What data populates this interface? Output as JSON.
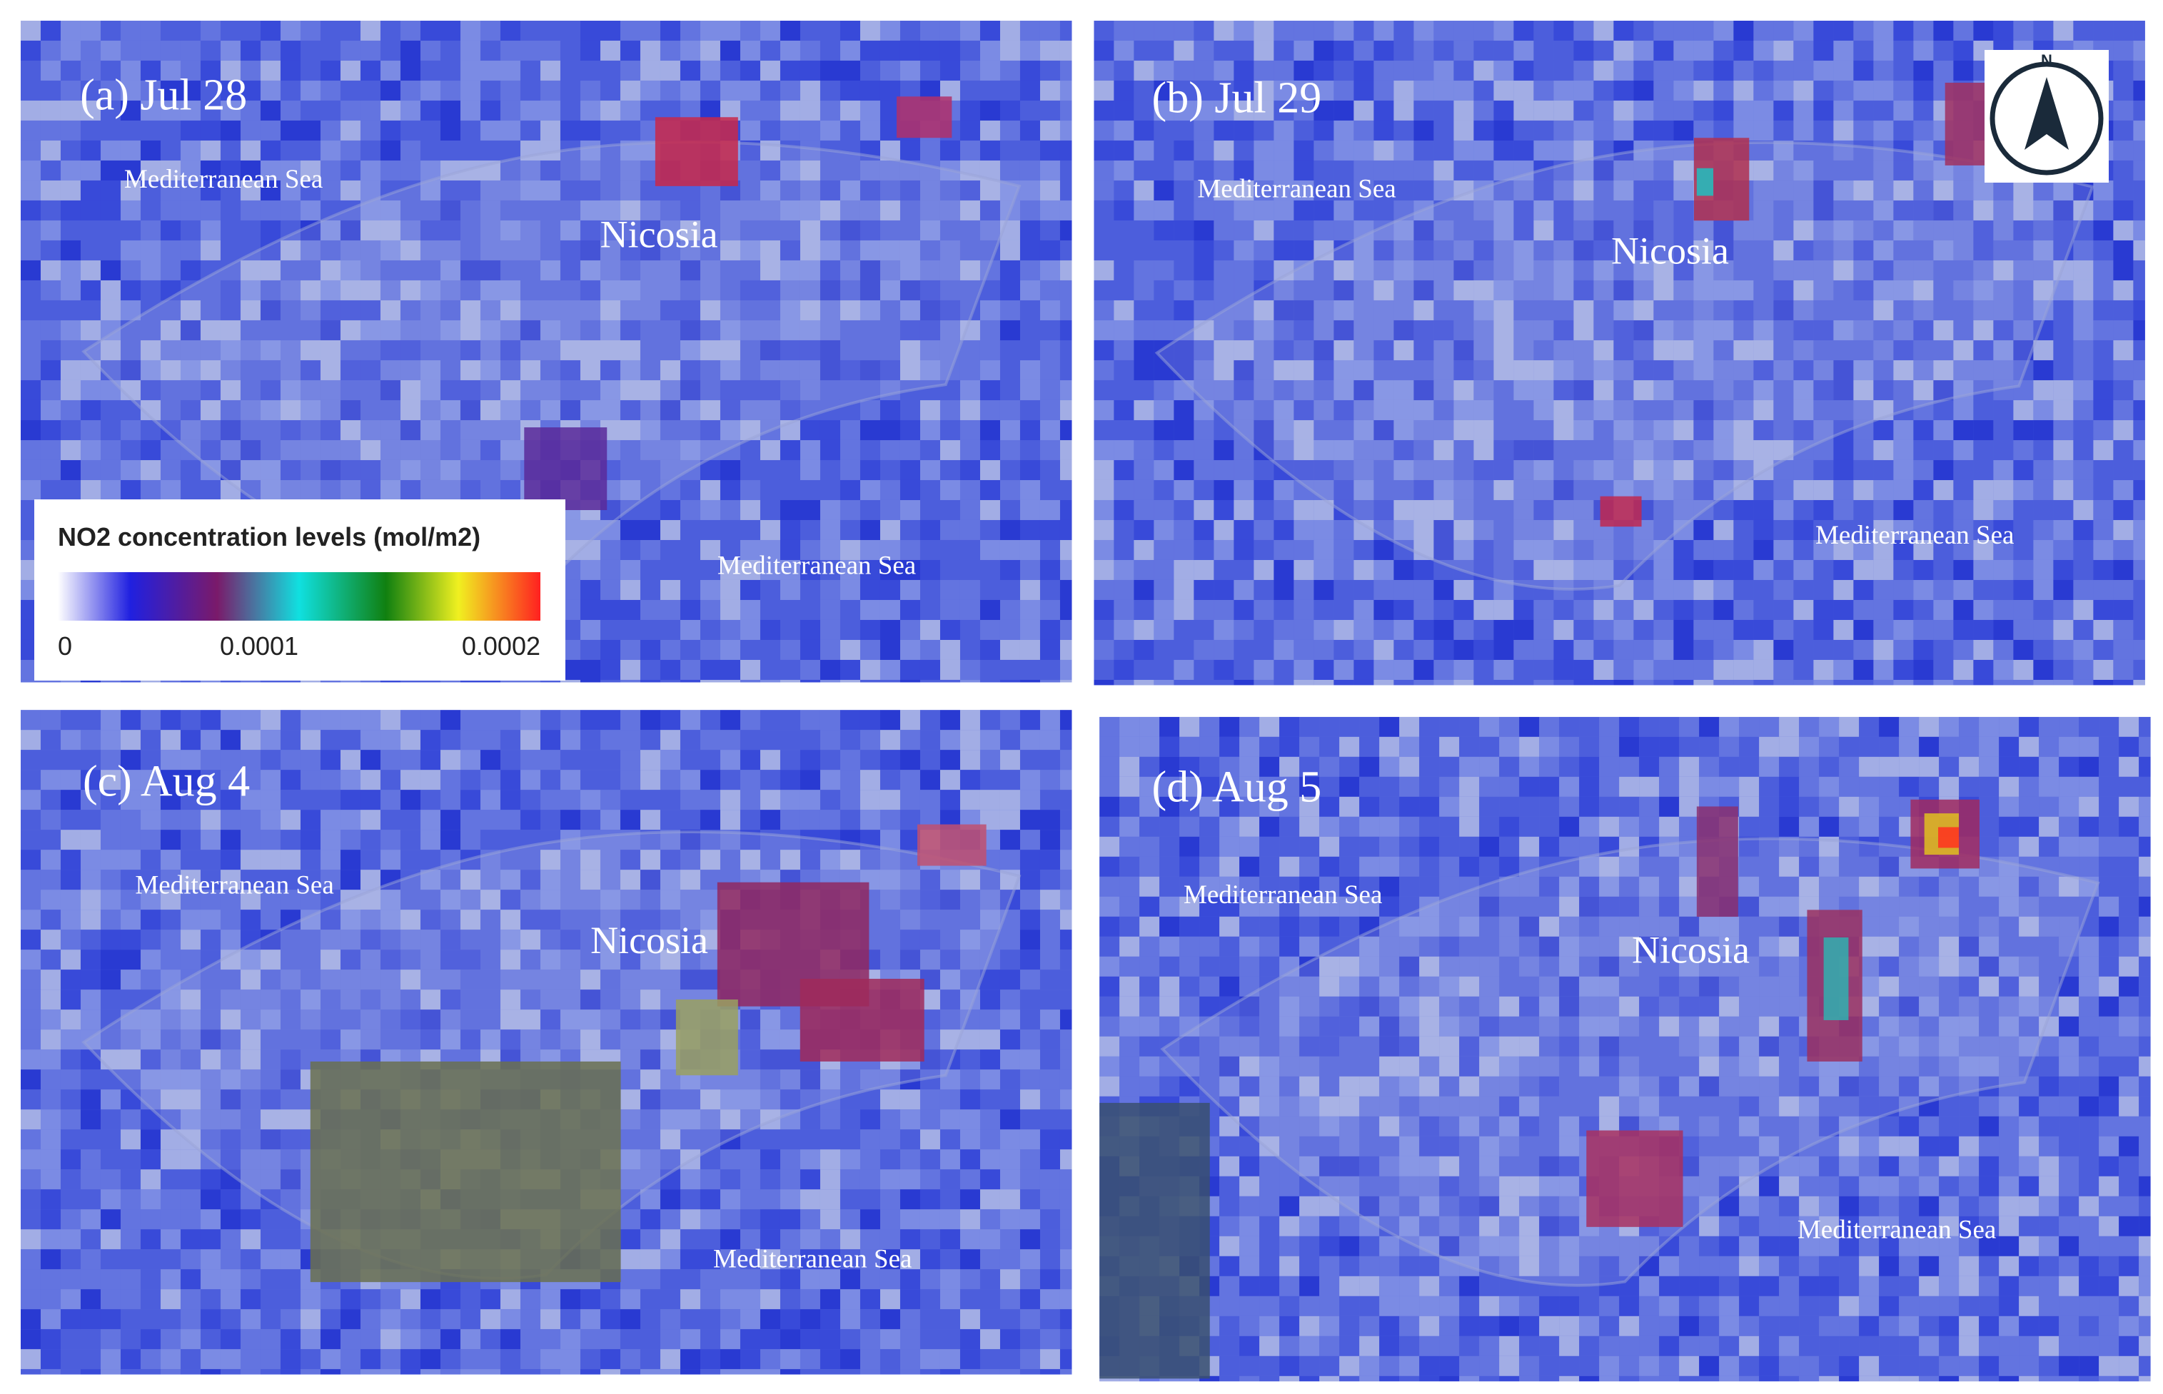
{
  "panels": [
    {
      "label": "(a) Jul 28",
      "places": [
        "Mediterranean Sea",
        "Nicosia",
        "Mediterranean Sea"
      ]
    },
    {
      "label": "(b) Jul 29",
      "places": [
        "Mediterranean Sea",
        "Nicosia",
        "Mediterranean Sea"
      ]
    },
    {
      "label": "(c) Aug 4",
      "places": [
        "Mediterranean Sea",
        "Nicosia",
        "Mediterranean Sea"
      ]
    },
    {
      "label": "(d) Aug 5",
      "places": [
        "Mediterranean Sea",
        "Nicosia",
        "Mediterranean Sea"
      ]
    }
  ],
  "legend": {
    "title": "NO2 concentration levels (mol/m2)",
    "ticks": [
      "0",
      "0.0001",
      "0.0002"
    ]
  },
  "north": "N"
}
